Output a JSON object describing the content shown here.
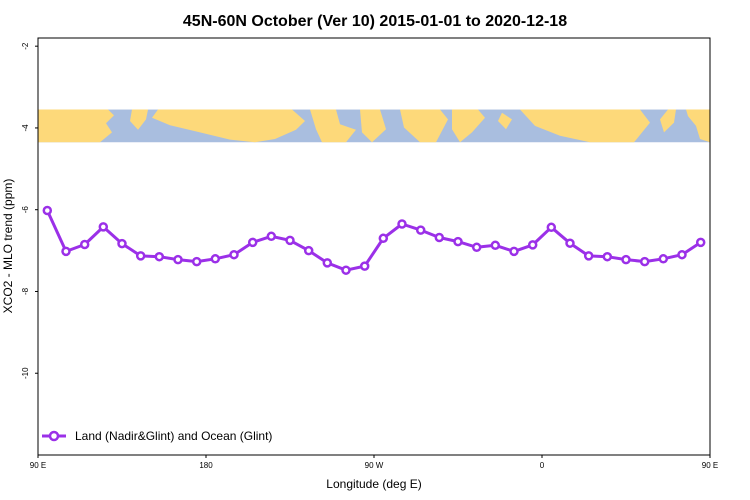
{
  "chart_data": {
    "type": "line",
    "title": "45N-60N October (Ver 10)   2015-01-01 to 2020-12-18",
    "xlabel": "Longitude (deg E)",
    "ylabel": "XCO2 - MLO trend (ppm)",
    "xlim": [
      90,
      450
    ],
    "ylim": [
      -12,
      -1.8
    ],
    "x_ticks": [
      {
        "value": 90,
        "label": "90 E"
      },
      {
        "value": 180,
        "label": "180"
      },
      {
        "value": 270,
        "label": "90 W"
      },
      {
        "value": 360,
        "label": "0"
      },
      {
        "value": 450,
        "label": "90 E"
      },
      {
        "value": 540,
        "label": "180"
      }
    ],
    "y_ticks": [
      {
        "value": -2,
        "label": "-2"
      },
      {
        "value": -4,
        "label": "-4"
      },
      {
        "value": -6,
        "label": "-6"
      },
      {
        "value": -8,
        "label": "-8"
      },
      {
        "value": -10,
        "label": "-10"
      }
    ],
    "map_strip": {
      "y_top": -3.55,
      "y_bottom": -4.35,
      "ocean_color": "#a9bedf",
      "land_color": "#fdd97a"
    },
    "series": [
      {
        "name": "Land (Nadir&Glint) and Ocean (Glint)",
        "color": "#9b30e8",
        "x": [
          95,
          105,
          115,
          125,
          135,
          145,
          155,
          165,
          175,
          185,
          195,
          205,
          215,
          225,
          235,
          245,
          255,
          265,
          275,
          285,
          295,
          305,
          315,
          325,
          335,
          345,
          355,
          365,
          375,
          385,
          395,
          405,
          415,
          425,
          435,
          445
        ],
        "values": [
          -6.02,
          -7.02,
          -6.85,
          -6.42,
          -6.83,
          -7.13,
          -7.15,
          -7.22,
          -7.27,
          -7.2,
          -7.1,
          -6.8,
          -6.65,
          -6.75,
          -7.0,
          -7.3,
          -7.48,
          -7.38,
          -6.7,
          -6.35,
          -6.5,
          -6.68,
          -6.78,
          -6.92,
          -6.87,
          -7.02,
          -6.86,
          -6.43,
          -6.82,
          -7.13,
          -7.15,
          -7.22,
          -7.27,
          -7.2,
          -7.1,
          -6.8
        ]
      }
    ],
    "grid": false,
    "legend_position": "bottom-left"
  }
}
